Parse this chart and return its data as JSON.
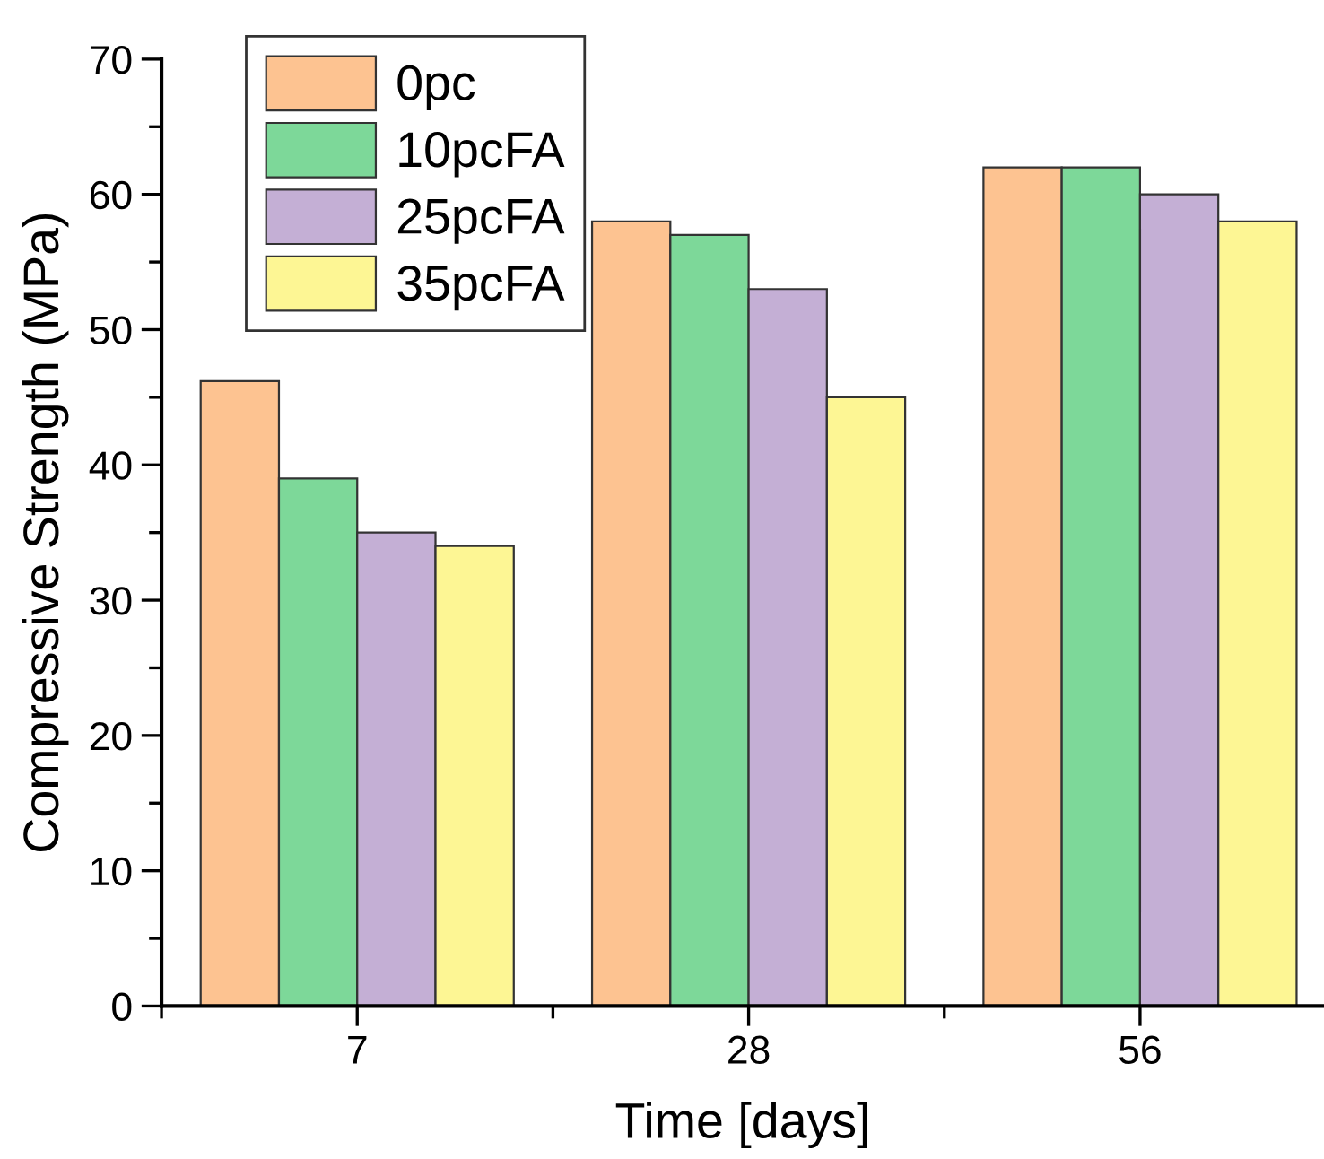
{
  "chart_data": {
    "type": "bar",
    "xlabel": "Time [days]",
    "ylabel": "Compressive Strength (MPa)",
    "categories": [
      "7",
      "28",
      "56"
    ],
    "series": [
      {
        "name": "0pc",
        "color": "#fdc391",
        "values": [
          46.2,
          58,
          62
        ]
      },
      {
        "name": "10pcFA",
        "color": "#7dd899",
        "values": [
          39,
          57,
          62
        ]
      },
      {
        "name": "25pcFA",
        "color": "#c4afd5",
        "values": [
          35,
          53,
          60
        ]
      },
      {
        "name": "35pcFA",
        "color": "#fdf694",
        "values": [
          34,
          45,
          58
        ]
      }
    ],
    "ylim": [
      0,
      70
    ],
    "yticks": [
      0,
      10,
      20,
      30,
      40,
      50,
      60,
      70
    ],
    "grid": false,
    "legend": "top left"
  }
}
